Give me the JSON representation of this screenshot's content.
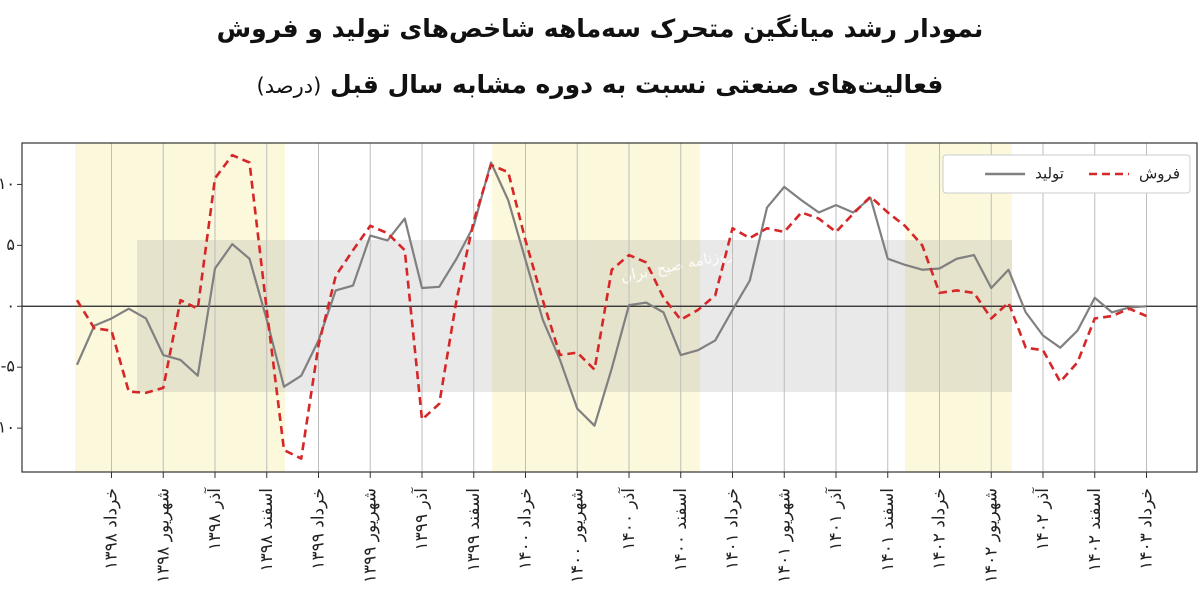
{
  "chart_data": {
    "type": "line",
    "title": "نمودار رشد میانگین متحرک سه‌ماهه شاخص‌های تولید و فروش",
    "subtitle": "فعالیت‌های صنعتی نسبت به دوره مشابه سال قبل",
    "unit": "(درصد)",
    "watermark": "روزنامه صبح ایران",
    "categories": [
      null,
      null,
      "خرداد ۱۳۹۸",
      null,
      null,
      "شهریور ۱۳۹۸",
      null,
      null,
      "آذر ۱۳۹۸",
      null,
      null,
      "اسفند ۱۳۹۸",
      null,
      null,
      "خرداد ۱۳۹۹",
      null,
      null,
      "شهریور ۱۳۹۹",
      null,
      null,
      "آذر ۱۳۹۹",
      null,
      null,
      "اسفند ۱۳۹۹",
      null,
      null,
      "خرداد ۱۴۰۰",
      null,
      null,
      "شهریور ۱۴۰۰",
      null,
      null,
      "آذر ۱۴۰۰",
      null,
      null,
      "اسفند ۱۴۰۰",
      null,
      null,
      "خرداد ۱۴۰۱",
      null,
      null,
      "شهریور ۱۴۰۱",
      null,
      null,
      "آذر ۱۴۰۱",
      null,
      null,
      "اسفند ۱۴۰۱",
      null,
      null,
      "خرداد ۱۴۰۲",
      null,
      null,
      "شهریور ۱۴۰۲",
      null,
      null,
      "آذر ۱۴۰۲",
      null,
      null,
      "اسفند ۱۴۰۲",
      null,
      null,
      "خرداد ۱۴۰۳"
    ],
    "series": [
      {
        "name": "تولید",
        "color": "#808080",
        "line_style": "solid",
        "values": [
          -4.8,
          -1.6,
          -1.0,
          -0.2,
          -1.0,
          -4.0,
          -4.4,
          -5.7,
          3.1,
          5.1,
          3.9,
          -1.1,
          -6.6,
          -5.7,
          -2.8,
          1.3,
          1.7,
          5.8,
          5.4,
          7.2,
          1.5,
          1.6,
          3.9,
          6.6,
          11.8,
          8.7,
          3.8,
          -1.1,
          -4.4,
          -8.4,
          -9.8,
          -5.1,
          0.1,
          0.3,
          -0.5,
          -4.0,
          -3.6,
          -2.8,
          -0.3,
          2.1,
          8.1,
          9.8,
          8.7,
          7.7,
          8.3,
          7.7,
          8.9,
          3.9,
          3.4,
          3.0,
          3.1,
          3.9,
          4.2,
          1.5,
          3.0,
          -0.5,
          -2.4,
          -3.4,
          -2.0,
          0.7,
          -0.5,
          -0.1,
          0
        ]
      },
      {
        "name": "فروش",
        "color": "#d62728",
        "line_style": "dashed",
        "values": [
          0.5,
          -1.8,
          -2.0,
          -7.0,
          -7.1,
          -6.7,
          0.5,
          -0.2,
          10.5,
          12.4,
          11.8,
          -0.3,
          -11.8,
          -12.5,
          -3.2,
          2.5,
          4.6,
          6.6,
          6.0,
          4.6,
          -9.3,
          -8.0,
          0.5,
          7.0,
          11.6,
          11.0,
          5.4,
          0.5,
          -4.0,
          -3.8,
          -5.2,
          3.0,
          4.2,
          3.6,
          0.7,
          -1.1,
          -0.3,
          0.9,
          6.4,
          5.6,
          6.4,
          6.1,
          7.7,
          7.2,
          6.1,
          7.6,
          9.0,
          7.7,
          6.6,
          5.0,
          1.1,
          1.3,
          1.1,
          -1.0,
          0.3,
          -3.4,
          -3.6,
          -6.2,
          -4.6,
          -1.0,
          -0.8,
          -0.2,
          -0.8
        ]
      }
    ],
    "ylim": [
      -13.6,
      13.4
    ],
    "yticks": [
      {
        "value": -10,
        "label": "-۱۰"
      },
      {
        "value": -5,
        "label": "-۵"
      },
      {
        "value": 0,
        "label": "۰"
      },
      {
        "value": 5,
        "label": "۵"
      },
      {
        "value": 10,
        "label": "۱۰"
      }
    ],
    "zero_line": true,
    "x_grid": true,
    "legend": "upper-right"
  }
}
